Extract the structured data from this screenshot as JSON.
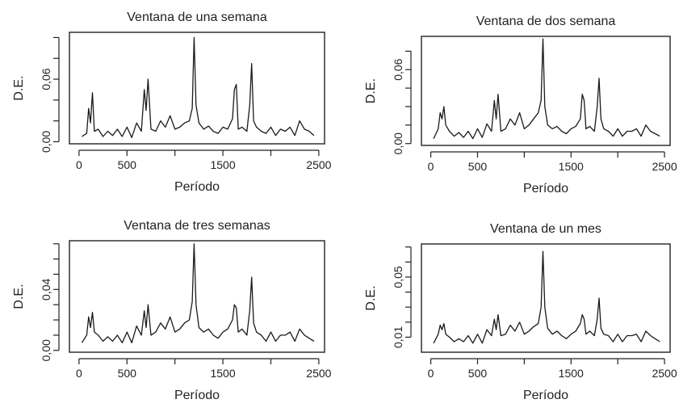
{
  "chart_data": [
    {
      "type": "line",
      "title": "Ventana de una semana",
      "xlabel": "Período",
      "ylabel": "D.E.",
      "xlim": [
        -100,
        2560
      ],
      "ylim": [
        -0.002,
        0.105
      ],
      "xticks": [
        0,
        500,
        1000,
        1500,
        2000,
        2500
      ],
      "xtick_labels": [
        "0",
        "500",
        "",
        "1500",
        "",
        "2500"
      ],
      "yticks": [
        0,
        0.02,
        0.04,
        0.06,
        0.08,
        0.1
      ],
      "ytick_labels": [
        "0,00",
        "",
        "",
        "0,06",
        "",
        ""
      ],
      "x": [
        30,
        80,
        100,
        120,
        140,
        160,
        200,
        250,
        300,
        350,
        400,
        450,
        500,
        550,
        600,
        650,
        680,
        700,
        720,
        750,
        800,
        850,
        900,
        950,
        1000,
        1050,
        1100,
        1150,
        1180,
        1200,
        1220,
        1250,
        1300,
        1350,
        1400,
        1450,
        1500,
        1550,
        1600,
        1620,
        1640,
        1660,
        1700,
        1750,
        1780,
        1800,
        1820,
        1850,
        1900,
        1950,
        2000,
        2050,
        2100,
        2150,
        2200,
        2250,
        2300,
        2350,
        2400,
        2450
      ],
      "y": [
        0.005,
        0.008,
        0.032,
        0.018,
        0.047,
        0.01,
        0.012,
        0.005,
        0.01,
        0.006,
        0.012,
        0.005,
        0.014,
        0.004,
        0.018,
        0.01,
        0.05,
        0.03,
        0.06,
        0.012,
        0.01,
        0.02,
        0.014,
        0.025,
        0.012,
        0.014,
        0.018,
        0.02,
        0.032,
        0.1,
        0.035,
        0.018,
        0.012,
        0.015,
        0.01,
        0.008,
        0.014,
        0.012,
        0.022,
        0.05,
        0.055,
        0.012,
        0.014,
        0.01,
        0.035,
        0.075,
        0.02,
        0.014,
        0.01,
        0.008,
        0.014,
        0.006,
        0.012,
        0.01,
        0.014,
        0.006,
        0.02,
        0.012,
        0.01,
        0.006
      ]
    },
    {
      "type": "line",
      "title": "Ventana de dos semana",
      "xlabel": "Período",
      "ylabel": "D.E.",
      "xlim": [
        -100,
        2560
      ],
      "ylim": [
        -0.0015,
        0.087
      ],
      "xticks": [
        0,
        500,
        1000,
        1500,
        2000,
        2500
      ],
      "xtick_labels": [
        "0",
        "500",
        "",
        "1500",
        "",
        "2500"
      ],
      "yticks": [
        0,
        0.015,
        0.03,
        0.045,
        0.06,
        0.075
      ],
      "ytick_labels": [
        "0,00",
        "",
        "",
        "",
        "0,06",
        ""
      ],
      "x": [
        30,
        80,
        100,
        120,
        140,
        160,
        200,
        250,
        300,
        350,
        400,
        450,
        500,
        550,
        600,
        650,
        680,
        700,
        720,
        750,
        800,
        850,
        900,
        950,
        1000,
        1050,
        1100,
        1150,
        1180,
        1200,
        1220,
        1250,
        1300,
        1350,
        1400,
        1450,
        1500,
        1550,
        1600,
        1620,
        1640,
        1660,
        1700,
        1750,
        1780,
        1800,
        1820,
        1850,
        1900,
        1950,
        2000,
        2050,
        2100,
        2150,
        2200,
        2250,
        2300,
        2350,
        2400,
        2450
      ],
      "y": [
        0.004,
        0.012,
        0.025,
        0.02,
        0.03,
        0.015,
        0.01,
        0.006,
        0.009,
        0.005,
        0.01,
        0.004,
        0.012,
        0.005,
        0.016,
        0.01,
        0.035,
        0.02,
        0.04,
        0.01,
        0.012,
        0.02,
        0.015,
        0.025,
        0.012,
        0.015,
        0.02,
        0.025,
        0.035,
        0.085,
        0.03,
        0.015,
        0.012,
        0.014,
        0.01,
        0.008,
        0.012,
        0.014,
        0.02,
        0.04,
        0.035,
        0.012,
        0.014,
        0.01,
        0.03,
        0.053,
        0.02,
        0.012,
        0.01,
        0.006,
        0.012,
        0.006,
        0.01,
        0.01,
        0.012,
        0.006,
        0.015,
        0.01,
        0.008,
        0.006
      ]
    },
    {
      "type": "line",
      "title": "Ventana de tres semanas",
      "xlabel": "Período",
      "ylabel": "D.E.",
      "xlim": [
        -100,
        2560
      ],
      "ylim": [
        -0.0012,
        0.072
      ],
      "xticks": [
        0,
        500,
        1000,
        1500,
        2000,
        2500
      ],
      "xtick_labels": [
        "0",
        "500",
        "",
        "1500",
        "",
        "2500"
      ],
      "yticks": [
        0,
        0.01,
        0.02,
        0.03,
        0.04,
        0.05,
        0.06,
        0.07
      ],
      "ytick_labels": [
        "0,00",
        "",
        "",
        "",
        "0,04",
        "",
        "",
        ""
      ],
      "x": [
        30,
        80,
        100,
        120,
        140,
        160,
        200,
        250,
        300,
        350,
        400,
        450,
        500,
        550,
        600,
        650,
        680,
        700,
        720,
        750,
        800,
        850,
        900,
        950,
        1000,
        1050,
        1100,
        1150,
        1180,
        1200,
        1220,
        1250,
        1300,
        1350,
        1400,
        1450,
        1500,
        1550,
        1600,
        1620,
        1640,
        1660,
        1700,
        1750,
        1780,
        1800,
        1820,
        1850,
        1900,
        1950,
        2000,
        2050,
        2100,
        2150,
        2200,
        2250,
        2300,
        2350,
        2400,
        2450
      ],
      "y": [
        0.005,
        0.01,
        0.022,
        0.015,
        0.025,
        0.012,
        0.01,
        0.006,
        0.009,
        0.006,
        0.01,
        0.005,
        0.012,
        0.005,
        0.016,
        0.01,
        0.026,
        0.015,
        0.03,
        0.01,
        0.012,
        0.018,
        0.014,
        0.022,
        0.012,
        0.014,
        0.018,
        0.02,
        0.032,
        0.07,
        0.03,
        0.015,
        0.012,
        0.014,
        0.01,
        0.008,
        0.012,
        0.014,
        0.02,
        0.03,
        0.028,
        0.012,
        0.014,
        0.01,
        0.026,
        0.048,
        0.018,
        0.012,
        0.01,
        0.006,
        0.012,
        0.006,
        0.01,
        0.01,
        0.012,
        0.006,
        0.014,
        0.01,
        0.008,
        0.006
      ]
    },
    {
      "type": "line",
      "title": "Ventana de un mes",
      "xlabel": "Período",
      "ylabel": "D.E.",
      "xlim": [
        -100,
        2560
      ],
      "ylim": [
        0.0,
        0.072
      ],
      "xticks": [
        0,
        500,
        1000,
        1500,
        2000,
        2500
      ],
      "xtick_labels": [
        "0",
        "500",
        "",
        "1500",
        "",
        "2500"
      ],
      "yticks": [
        0.01,
        0.02,
        0.03,
        0.04,
        0.05,
        0.06,
        0.07
      ],
      "ytick_labels": [
        "0,01",
        "",
        "",
        "",
        "0,05",
        "",
        ""
      ],
      "x": [
        30,
        80,
        100,
        120,
        140,
        160,
        200,
        250,
        300,
        350,
        400,
        450,
        500,
        550,
        600,
        650,
        680,
        700,
        720,
        750,
        800,
        850,
        900,
        950,
        1000,
        1050,
        1100,
        1150,
        1180,
        1200,
        1220,
        1250,
        1300,
        1350,
        1400,
        1450,
        1500,
        1550,
        1600,
        1620,
        1640,
        1660,
        1700,
        1750,
        1780,
        1800,
        1820,
        1850,
        1900,
        1950,
        2000,
        2050,
        2100,
        2150,
        2200,
        2250,
        2300,
        2350,
        2400,
        2450
      ],
      "y": [
        0.006,
        0.012,
        0.018,
        0.015,
        0.019,
        0.012,
        0.01,
        0.007,
        0.009,
        0.007,
        0.011,
        0.006,
        0.012,
        0.006,
        0.015,
        0.011,
        0.022,
        0.015,
        0.025,
        0.011,
        0.012,
        0.018,
        0.014,
        0.02,
        0.012,
        0.014,
        0.017,
        0.019,
        0.03,
        0.067,
        0.03,
        0.016,
        0.012,
        0.014,
        0.011,
        0.009,
        0.012,
        0.014,
        0.019,
        0.025,
        0.022,
        0.012,
        0.014,
        0.011,
        0.022,
        0.036,
        0.016,
        0.012,
        0.011,
        0.007,
        0.012,
        0.007,
        0.011,
        0.011,
        0.012,
        0.007,
        0.014,
        0.011,
        0.009,
        0.007
      ]
    }
  ]
}
